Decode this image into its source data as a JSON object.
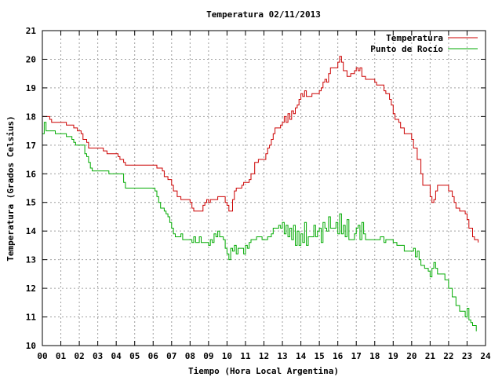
{
  "chart_data": {
    "type": "line",
    "title": "Temperatura 02/11/2013",
    "xlabel": "Tiempo (Hora Local Argentina)",
    "ylabel": "Temperatura (Grados Celsius)",
    "xlim": [
      0,
      24
    ],
    "ylim": [
      10,
      21
    ],
    "x_ticks": [
      "00",
      "01",
      "02",
      "03",
      "04",
      "05",
      "06",
      "07",
      "08",
      "09",
      "10",
      "11",
      "12",
      "13",
      "14",
      "15",
      "16",
      "17",
      "18",
      "19",
      "20",
      "21",
      "22",
      "23",
      "24"
    ],
    "y_ticks": [
      "10",
      "11",
      "12",
      "13",
      "14",
      "15",
      "16",
      "17",
      "18",
      "19",
      "20",
      "21"
    ],
    "grid": true,
    "legend_position": "top-right",
    "series": [
      {
        "name": "Temperatura",
        "color": "#cc0000",
        "points": [
          [
            0.0,
            18.0
          ],
          [
            0.4,
            17.9
          ],
          [
            0.5,
            17.8
          ],
          [
            1.2,
            17.8
          ],
          [
            1.3,
            17.7
          ],
          [
            1.6,
            17.7
          ],
          [
            1.7,
            17.6
          ],
          [
            1.9,
            17.5
          ],
          [
            2.1,
            17.4
          ],
          [
            2.2,
            17.2
          ],
          [
            2.4,
            17.1
          ],
          [
            2.5,
            16.9
          ],
          [
            3.2,
            16.9
          ],
          [
            3.3,
            16.8
          ],
          [
            3.5,
            16.7
          ],
          [
            4.0,
            16.7
          ],
          [
            4.1,
            16.6
          ],
          [
            4.2,
            16.5
          ],
          [
            4.4,
            16.4
          ],
          [
            4.5,
            16.3
          ],
          [
            6.1,
            16.3
          ],
          [
            6.2,
            16.2
          ],
          [
            6.4,
            16.2
          ],
          [
            6.5,
            16.1
          ],
          [
            6.6,
            15.9
          ],
          [
            6.8,
            15.8
          ],
          [
            7.0,
            15.6
          ],
          [
            7.1,
            15.4
          ],
          [
            7.3,
            15.2
          ],
          [
            7.5,
            15.1
          ],
          [
            7.7,
            15.1
          ],
          [
            8.0,
            15.0
          ],
          [
            8.1,
            14.8
          ],
          [
            8.2,
            14.7
          ],
          [
            8.6,
            14.7
          ],
          [
            8.7,
            14.9
          ],
          [
            8.8,
            15.0
          ],
          [
            8.9,
            15.1
          ],
          [
            9.0,
            15.0
          ],
          [
            9.1,
            15.1
          ],
          [
            9.3,
            15.1
          ],
          [
            9.5,
            15.2
          ],
          [
            9.8,
            15.2
          ],
          [
            9.9,
            15.0
          ],
          [
            10.0,
            14.9
          ],
          [
            10.1,
            14.7
          ],
          [
            10.2,
            14.7
          ],
          [
            10.3,
            15.1
          ],
          [
            10.4,
            15.4
          ],
          [
            10.5,
            15.5
          ],
          [
            10.6,
            15.5
          ],
          [
            10.8,
            15.6
          ],
          [
            10.9,
            15.7
          ],
          [
            11.2,
            15.8
          ],
          [
            11.3,
            16.0
          ],
          [
            11.5,
            16.4
          ],
          [
            11.7,
            16.5
          ],
          [
            12.0,
            16.5
          ],
          [
            12.1,
            16.7
          ],
          [
            12.2,
            16.9
          ],
          [
            12.3,
            17.0
          ],
          [
            12.4,
            17.2
          ],
          [
            12.5,
            17.4
          ],
          [
            12.6,
            17.6
          ],
          [
            12.8,
            17.6
          ],
          [
            12.9,
            17.7
          ],
          [
            13.0,
            17.8
          ],
          [
            13.1,
            18.0
          ],
          [
            13.2,
            17.8
          ],
          [
            13.3,
            18.1
          ],
          [
            13.4,
            17.9
          ],
          [
            13.5,
            18.2
          ],
          [
            13.6,
            18.1
          ],
          [
            13.7,
            18.3
          ],
          [
            13.8,
            18.4
          ],
          [
            13.9,
            18.6
          ],
          [
            14.0,
            18.8
          ],
          [
            14.1,
            18.7
          ],
          [
            14.2,
            18.9
          ],
          [
            14.3,
            18.7
          ],
          [
            14.5,
            18.7
          ],
          [
            14.6,
            18.8
          ],
          [
            14.9,
            18.8
          ],
          [
            15.0,
            18.9
          ],
          [
            15.1,
            19.0
          ],
          [
            15.2,
            19.2
          ],
          [
            15.3,
            19.3
          ],
          [
            15.4,
            19.2
          ],
          [
            15.5,
            19.5
          ],
          [
            15.6,
            19.7
          ],
          [
            15.8,
            19.7
          ],
          [
            16.0,
            19.9
          ],
          [
            16.1,
            20.1
          ],
          [
            16.2,
            19.9
          ],
          [
            16.3,
            19.6
          ],
          [
            16.5,
            19.4
          ],
          [
            16.7,
            19.5
          ],
          [
            16.9,
            19.6
          ],
          [
            17.0,
            19.7
          ],
          [
            17.1,
            19.6
          ],
          [
            17.2,
            19.7
          ],
          [
            17.3,
            19.4
          ],
          [
            17.5,
            19.3
          ],
          [
            17.9,
            19.3
          ],
          [
            18.0,
            19.2
          ],
          [
            18.1,
            19.1
          ],
          [
            18.4,
            19.1
          ],
          [
            18.5,
            18.9
          ],
          [
            18.6,
            18.8
          ],
          [
            18.8,
            18.6
          ],
          [
            18.9,
            18.4
          ],
          [
            19.0,
            18.1
          ],
          [
            19.1,
            17.9
          ],
          [
            19.3,
            17.8
          ],
          [
            19.4,
            17.6
          ],
          [
            19.6,
            17.4
          ],
          [
            19.9,
            17.4
          ],
          [
            20.0,
            17.2
          ],
          [
            20.1,
            16.9
          ],
          [
            20.3,
            16.5
          ],
          [
            20.5,
            16.0
          ],
          [
            20.6,
            15.6
          ],
          [
            20.9,
            15.6
          ],
          [
            21.0,
            15.2
          ],
          [
            21.1,
            15.0
          ],
          [
            21.2,
            15.1
          ],
          [
            21.3,
            15.4
          ],
          [
            21.4,
            15.6
          ],
          [
            21.9,
            15.6
          ],
          [
            22.0,
            15.4
          ],
          [
            22.2,
            15.2
          ],
          [
            22.3,
            15.0
          ],
          [
            22.4,
            14.8
          ],
          [
            22.6,
            14.7
          ],
          [
            22.9,
            14.6
          ],
          [
            23.0,
            14.4
          ],
          [
            23.1,
            14.1
          ],
          [
            23.3,
            13.8
          ],
          [
            23.4,
            13.7
          ],
          [
            23.6,
            13.6
          ]
        ]
      },
      {
        "name": "Punto de Rocío",
        "color": "#00aa00",
        "points": [
          [
            0.0,
            17.4
          ],
          [
            0.1,
            17.8
          ],
          [
            0.2,
            17.5
          ],
          [
            0.6,
            17.5
          ],
          [
            0.7,
            17.4
          ],
          [
            1.2,
            17.4
          ],
          [
            1.3,
            17.3
          ],
          [
            1.5,
            17.3
          ],
          [
            1.6,
            17.2
          ],
          [
            1.7,
            17.1
          ],
          [
            1.8,
            17.0
          ],
          [
            2.2,
            17.0
          ],
          [
            2.3,
            16.7
          ],
          [
            2.4,
            16.6
          ],
          [
            2.5,
            16.4
          ],
          [
            2.6,
            16.2
          ],
          [
            2.7,
            16.1
          ],
          [
            3.5,
            16.1
          ],
          [
            3.6,
            16.0
          ],
          [
            4.3,
            16.0
          ],
          [
            4.4,
            15.7
          ],
          [
            4.5,
            15.5
          ],
          [
            6.0,
            15.5
          ],
          [
            6.1,
            15.4
          ],
          [
            6.2,
            15.2
          ],
          [
            6.3,
            15.0
          ],
          [
            6.4,
            14.8
          ],
          [
            6.6,
            14.7
          ],
          [
            6.7,
            14.6
          ],
          [
            6.8,
            14.5
          ],
          [
            6.9,
            14.3
          ],
          [
            7.0,
            14.1
          ],
          [
            7.1,
            13.9
          ],
          [
            7.2,
            13.8
          ],
          [
            7.4,
            13.8
          ],
          [
            7.5,
            13.9
          ],
          [
            7.6,
            13.7
          ],
          [
            8.0,
            13.7
          ],
          [
            8.1,
            13.6
          ],
          [
            8.2,
            13.8
          ],
          [
            8.3,
            13.6
          ],
          [
            8.4,
            13.6
          ],
          [
            8.5,
            13.8
          ],
          [
            8.6,
            13.6
          ],
          [
            8.9,
            13.6
          ],
          [
            9.0,
            13.5
          ],
          [
            9.1,
            13.7
          ],
          [
            9.2,
            13.6
          ],
          [
            9.3,
            13.9
          ],
          [
            9.4,
            13.8
          ],
          [
            9.5,
            14.0
          ],
          [
            9.6,
            13.8
          ],
          [
            9.8,
            13.7
          ],
          [
            9.9,
            13.4
          ],
          [
            10.0,
            13.2
          ],
          [
            10.1,
            13.0
          ],
          [
            10.2,
            13.4
          ],
          [
            10.3,
            13.3
          ],
          [
            10.4,
            13.5
          ],
          [
            10.5,
            13.2
          ],
          [
            10.6,
            13.4
          ],
          [
            10.8,
            13.4
          ],
          [
            10.9,
            13.2
          ],
          [
            11.0,
            13.5
          ],
          [
            11.1,
            13.4
          ],
          [
            11.2,
            13.6
          ],
          [
            11.3,
            13.7
          ],
          [
            11.5,
            13.7
          ],
          [
            11.6,
            13.8
          ],
          [
            11.8,
            13.8
          ],
          [
            11.9,
            13.7
          ],
          [
            12.2,
            13.8
          ],
          [
            12.4,
            13.9
          ],
          [
            12.5,
            14.1
          ],
          [
            12.6,
            14.1
          ],
          [
            12.8,
            14.2
          ],
          [
            12.9,
            14.1
          ],
          [
            13.0,
            14.3
          ],
          [
            13.1,
            13.9
          ],
          [
            13.2,
            14.2
          ],
          [
            13.3,
            13.8
          ],
          [
            13.4,
            14.1
          ],
          [
            13.5,
            13.7
          ],
          [
            13.6,
            14.2
          ],
          [
            13.7,
            13.5
          ],
          [
            13.8,
            14.0
          ],
          [
            13.9,
            13.5
          ],
          [
            14.0,
            13.9
          ],
          [
            14.1,
            13.6
          ],
          [
            14.2,
            14.3
          ],
          [
            14.3,
            13.5
          ],
          [
            14.4,
            13.8
          ],
          [
            14.5,
            13.8
          ],
          [
            14.7,
            14.2
          ],
          [
            14.8,
            13.8
          ],
          [
            14.9,
            14.0
          ],
          [
            15.0,
            14.1
          ],
          [
            15.1,
            13.6
          ],
          [
            15.2,
            14.3
          ],
          [
            15.3,
            14.1
          ],
          [
            15.4,
            14.0
          ],
          [
            15.5,
            14.5
          ],
          [
            15.6,
            14.1
          ],
          [
            15.8,
            14.1
          ],
          [
            15.9,
            14.3
          ],
          [
            16.0,
            13.9
          ],
          [
            16.1,
            14.6
          ],
          [
            16.2,
            13.9
          ],
          [
            16.3,
            14.2
          ],
          [
            16.4,
            13.8
          ],
          [
            16.5,
            14.4
          ],
          [
            16.6,
            13.7
          ],
          [
            16.8,
            13.7
          ],
          [
            16.9,
            13.9
          ],
          [
            17.0,
            14.1
          ],
          [
            17.1,
            14.2
          ],
          [
            17.2,
            13.7
          ],
          [
            17.3,
            14.3
          ],
          [
            17.4,
            13.9
          ],
          [
            17.5,
            13.7
          ],
          [
            18.2,
            13.7
          ],
          [
            18.3,
            13.8
          ],
          [
            18.4,
            13.8
          ],
          [
            18.5,
            13.6
          ],
          [
            18.6,
            13.7
          ],
          [
            18.8,
            13.7
          ],
          [
            19.0,
            13.6
          ],
          [
            19.2,
            13.5
          ],
          [
            19.5,
            13.5
          ],
          [
            19.6,
            13.3
          ],
          [
            20.0,
            13.3
          ],
          [
            20.1,
            13.4
          ],
          [
            20.2,
            13.1
          ],
          [
            20.3,
            13.3
          ],
          [
            20.4,
            13.0
          ],
          [
            20.5,
            12.8
          ],
          [
            20.7,
            12.7
          ],
          [
            20.9,
            12.6
          ],
          [
            21.0,
            12.4
          ],
          [
            21.1,
            12.7
          ],
          [
            21.2,
            12.9
          ],
          [
            21.3,
            12.7
          ],
          [
            21.4,
            12.5
          ],
          [
            21.7,
            12.5
          ],
          [
            21.8,
            12.3
          ],
          [
            22.0,
            12.0
          ],
          [
            22.2,
            11.7
          ],
          [
            22.4,
            11.4
          ],
          [
            22.6,
            11.2
          ],
          [
            22.8,
            11.2
          ],
          [
            22.9,
            11.0
          ],
          [
            23.0,
            11.3
          ],
          [
            23.1,
            10.9
          ],
          [
            23.2,
            10.8
          ],
          [
            23.3,
            10.7
          ],
          [
            23.4,
            10.7
          ],
          [
            23.5,
            10.5
          ]
        ]
      }
    ]
  }
}
